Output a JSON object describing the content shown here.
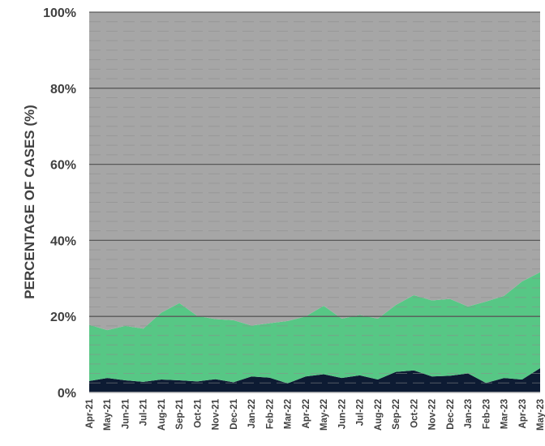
{
  "chart_data": {
    "type": "area",
    "stacked": true,
    "title": "",
    "xlabel": "",
    "ylabel": "PERCENTAGE OF CASES (%)",
    "ylim": [
      0,
      100
    ],
    "yticks": [
      "0%",
      "20%",
      "40%",
      "60%",
      "80%",
      "100%"
    ],
    "grid": true,
    "legend": "none",
    "categories": [
      "Apr-21",
      "May-21",
      "Jun-21",
      "Jul-21",
      "Aug-21",
      "Sep-21",
      "Oct-21",
      "Nov-21",
      "Dec-21",
      "Jan-22",
      "Feb-22",
      "Mar-22",
      "Apr-22",
      "May-22",
      "Jun-22",
      "Jul-22",
      "Aug-22",
      "Sep-22",
      "Oct-22",
      "Nov-22",
      "Dec-22",
      "Jan-23",
      "Feb-23",
      "Mar-23",
      "Apr-23",
      "May-23"
    ],
    "series": [
      {
        "color": "#0d1b33",
        "values": [
          3.0,
          3.8,
          3.2,
          2.8,
          3.4,
          3.2,
          2.9,
          3.5,
          2.7,
          4.2,
          3.9,
          2.4,
          4.2,
          4.8,
          3.8,
          4.5,
          3.4,
          5.4,
          5.8,
          4.2,
          4.4,
          5.0,
          2.5,
          3.8,
          3.4,
          6.4
        ]
      },
      {
        "color": "#57c785",
        "values": [
          14.8,
          12.6,
          14.3,
          14.0,
          17.6,
          20.3,
          17.2,
          15.8,
          16.3,
          13.4,
          14.3,
          16.4,
          15.8,
          18.0,
          15.6,
          15.9,
          16.0,
          17.6,
          19.8,
          20.0,
          20.2,
          17.6,
          21.4,
          21.6,
          25.8,
          25.2
        ]
      },
      {
        "color": "#a6a6a6",
        "values": [
          82.2,
          83.6,
          82.5,
          83.2,
          79.0,
          76.5,
          79.9,
          80.7,
          81.0,
          82.4,
          81.8,
          81.2,
          80.0,
          77.2,
          80.6,
          79.6,
          80.6,
          77.0,
          74.4,
          75.8,
          75.4,
          77.4,
          76.1,
          74.6,
          70.8,
          68.4
        ]
      }
    ]
  }
}
